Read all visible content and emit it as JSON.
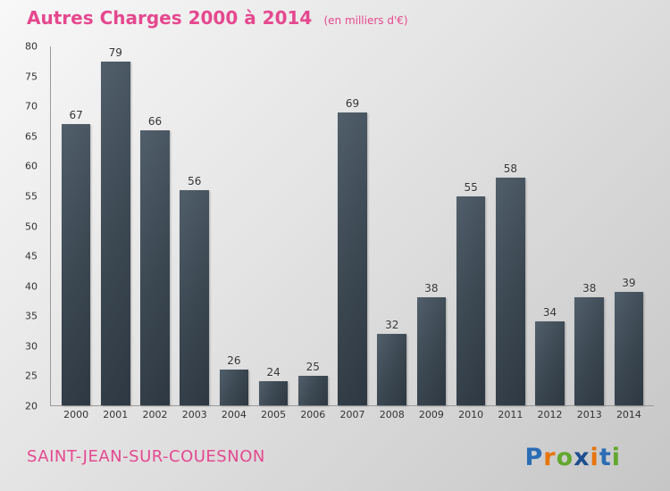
{
  "title": {
    "main": "Autres Charges 2000 à 2014",
    "subtitle": "(en milliers d'€)"
  },
  "footer": {
    "location": "SAINT-JEAN-SUR-COUESNON"
  },
  "logo": {
    "name": "Proxiti",
    "letters": [
      {
        "char": "P",
        "color": "#2a6db5"
      },
      {
        "char": "r",
        "color": "#e8740c"
      },
      {
        "char": "o",
        "color": "#62a82e"
      },
      {
        "char": "x",
        "color": "#1d4f8f"
      },
      {
        "char": "i",
        "color": "#e8740c"
      },
      {
        "char": "t",
        "color": "#2a6db5"
      },
      {
        "char": "i",
        "color": "#62a82e"
      }
    ]
  },
  "colors": {
    "accent_pink": "#e5488f",
    "bar_color": "#3a4650",
    "axis_color": "#9a9a9a",
    "label_color": "#333333"
  },
  "chart_data": {
    "type": "bar",
    "title": "Autres Charges 2000 à 2014",
    "subtitle": "(en milliers d'€)",
    "categories": [
      "2000",
      "2001",
      "2002",
      "2003",
      "2004",
      "2005",
      "2006",
      "2007",
      "2008",
      "2009",
      "2010",
      "2011",
      "2012",
      "2013",
      "2014"
    ],
    "values": [
      67,
      79,
      66,
      56,
      26,
      24,
      25,
      69,
      32,
      38,
      55,
      58,
      34,
      38,
      39
    ],
    "xlabel": "",
    "ylabel": "",
    "ylim": [
      20,
      80
    ],
    "ytick_step": 5,
    "grid": false,
    "legend": false
  }
}
